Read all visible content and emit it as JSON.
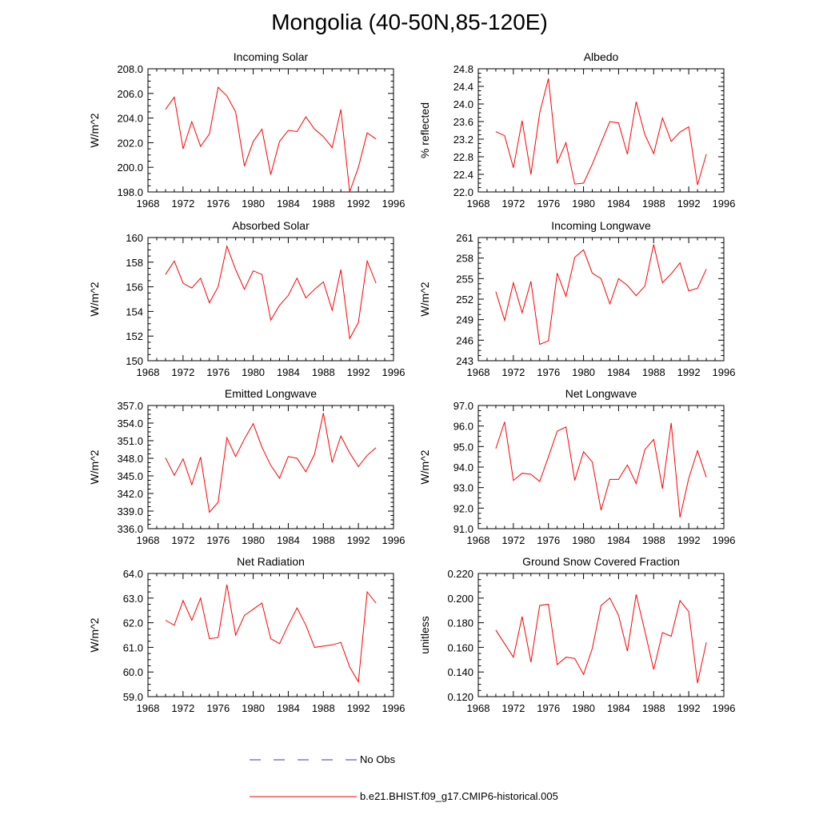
{
  "figure": {
    "title": "Mongolia (40-50N,85-120E)",
    "legend": [
      {
        "label": "No Obs",
        "color": "#3a3aa8",
        "style": "dashed"
      },
      {
        "label": "b.e21.BHIST.f09_g17.CMIP6-historical.005",
        "color": "#ff0000",
        "style": "solid"
      }
    ]
  },
  "chart_data": [
    {
      "type": "line",
      "title": "Incoming Solar",
      "xlabel": "",
      "ylabel": "W/m^2",
      "xlim": [
        1968,
        1996
      ],
      "xticks": [
        1968,
        1972,
        1976,
        1980,
        1984,
        1988,
        1992,
        1996
      ],
      "xticklabels": [
        "1968",
        "1972",
        "1976",
        "1980",
        "1984",
        "1988",
        "1992",
        "1996"
      ],
      "ylim": [
        198,
        208
      ],
      "yticks": [
        198,
        200,
        202,
        204,
        206,
        208
      ],
      "yticklabels": [
        "198.0",
        "200.0",
        "202.0",
        "204.0",
        "206.0",
        "208.0"
      ],
      "series": [
        {
          "name": "b.e21.BHIST.f09_g17.CMIP6-historical.005",
          "color": "#ff0000",
          "x": [
            1970,
            1971,
            1972,
            1973,
            1974,
            1975,
            1976,
            1977,
            1978,
            1979,
            1980,
            1981,
            1982,
            1983,
            1984,
            1985,
            1986,
            1987,
            1988,
            1989,
            1990,
            1991,
            1992,
            1993,
            1994
          ],
          "values": [
            204.7,
            205.7,
            201.5,
            203.7,
            201.7,
            202.7,
            206.5,
            205.8,
            204.5,
            200.1,
            202.1,
            203.1,
            199.4,
            202.1,
            203.0,
            202.9,
            204.1,
            203.1,
            202.5,
            201.6,
            204.7,
            198.0,
            200.0,
            202.8,
            202.3
          ]
        }
      ]
    },
    {
      "type": "line",
      "title": "Albedo",
      "xlabel": "",
      "ylabel": "% reflected",
      "xlim": [
        1968,
        1996
      ],
      "xticks": [
        1968,
        1972,
        1976,
        1980,
        1984,
        1988,
        1992,
        1996
      ],
      "xticklabels": [
        "1968",
        "1972",
        "1976",
        "1980",
        "1984",
        "1988",
        "1992",
        "1996"
      ],
      "ylim": [
        22.0,
        24.8
      ],
      "yticks": [
        22.0,
        22.4,
        22.8,
        23.2,
        23.6,
        24.0,
        24.4,
        24.8
      ],
      "yticklabels": [
        "22.0",
        "22.4",
        "22.8",
        "23.2",
        "23.6",
        "24.0",
        "24.4",
        "24.8"
      ],
      "series": [
        {
          "name": "b.e21.BHIST.f09_g17.CMIP6-historical.005",
          "color": "#ff0000",
          "x": [
            1970,
            1971,
            1972,
            1973,
            1974,
            1975,
            1976,
            1977,
            1978,
            1979,
            1980,
            1981,
            1982,
            1983,
            1984,
            1985,
            1986,
            1987,
            1988,
            1989,
            1990,
            1991,
            1992,
            1993,
            1994
          ],
          "values": [
            23.37,
            23.28,
            22.55,
            23.62,
            22.4,
            23.8,
            24.58,
            22.66,
            23.12,
            22.18,
            22.2,
            22.63,
            23.12,
            23.6,
            23.57,
            22.86,
            24.05,
            23.3,
            22.87,
            23.68,
            23.15,
            23.36,
            23.48,
            22.16,
            22.86
          ]
        }
      ]
    },
    {
      "type": "line",
      "title": "Absorbed Solar",
      "xlabel": "",
      "ylabel": "W/m^2",
      "xlim": [
        1968,
        1996
      ],
      "xticks": [
        1968,
        1972,
        1976,
        1980,
        1984,
        1988,
        1992,
        1996
      ],
      "xticklabels": [
        "1968",
        "1972",
        "1976",
        "1980",
        "1984",
        "1988",
        "1992",
        "1996"
      ],
      "ylim": [
        150,
        160
      ],
      "yticks": [
        150,
        152,
        154,
        156,
        158,
        160
      ],
      "yticklabels": [
        "150",
        "152",
        "154",
        "156",
        "158",
        "160"
      ],
      "series": [
        {
          "name": "b.e21.BHIST.f09_g17.CMIP6-historical.005",
          "color": "#ff0000",
          "x": [
            1970,
            1971,
            1972,
            1973,
            1974,
            1975,
            1976,
            1977,
            1978,
            1979,
            1980,
            1981,
            1982,
            1983,
            1984,
            1985,
            1986,
            1987,
            1988,
            1989,
            1990,
            1991,
            1992,
            1993,
            1994
          ],
          "values": [
            157.0,
            158.1,
            156.3,
            155.9,
            156.7,
            154.7,
            156.0,
            159.3,
            157.4,
            155.8,
            157.3,
            157.0,
            153.3,
            154.5,
            155.3,
            156.7,
            155.1,
            155.8,
            156.4,
            154.1,
            157.4,
            151.8,
            153.1,
            158.1,
            156.3
          ]
        }
      ]
    },
    {
      "type": "line",
      "title": "Incoming Longwave",
      "xlabel": "",
      "ylabel": "W/m^2",
      "xlim": [
        1968,
        1996
      ],
      "xticks": [
        1968,
        1972,
        1976,
        1980,
        1984,
        1988,
        1992,
        1996
      ],
      "xticklabels": [
        "1968",
        "1972",
        "1976",
        "1980",
        "1984",
        "1988",
        "1992",
        "1996"
      ],
      "ylim": [
        243,
        261
      ],
      "yticks": [
        243,
        246,
        249,
        252,
        255,
        258,
        261
      ],
      "yticklabels": [
        "243",
        "246",
        "249",
        "252",
        "255",
        "258",
        "261"
      ],
      "series": [
        {
          "name": "b.e21.BHIST.f09_g17.CMIP6-historical.005",
          "color": "#ff0000",
          "x": [
            1970,
            1971,
            1972,
            1973,
            1974,
            1975,
            1976,
            1977,
            1978,
            1979,
            1980,
            1981,
            1982,
            1983,
            1984,
            1985,
            1986,
            1987,
            1988,
            1989,
            1990,
            1991,
            1992,
            1993,
            1994
          ],
          "values": [
            253.1,
            248.9,
            254.4,
            250.0,
            254.6,
            245.4,
            245.9,
            255.8,
            252.4,
            258.1,
            259.2,
            255.8,
            255.0,
            251.3,
            255.0,
            254.0,
            252.5,
            253.9,
            260.0,
            254.4,
            255.7,
            257.3,
            253.2,
            253.6,
            256.4
          ]
        }
      ]
    },
    {
      "type": "line",
      "title": "Emitted Longwave",
      "xlabel": "",
      "ylabel": "W/m^2",
      "xlim": [
        1968,
        1996
      ],
      "xticks": [
        1968,
        1972,
        1976,
        1980,
        1984,
        1988,
        1992,
        1996
      ],
      "xticklabels": [
        "1968",
        "1972",
        "1976",
        "1980",
        "1984",
        "1988",
        "1992",
        "1996"
      ],
      "ylim": [
        336,
        357
      ],
      "yticks": [
        336,
        339,
        342,
        345,
        348,
        351,
        354,
        357
      ],
      "yticklabels": [
        "336.0",
        "339.0",
        "342.0",
        "345.0",
        "348.0",
        "351.0",
        "354.0",
        "357.0"
      ],
      "series": [
        {
          "name": "b.e21.BHIST.f09_g17.CMIP6-historical.005",
          "color": "#ff0000",
          "x": [
            1970,
            1971,
            1972,
            1973,
            1974,
            1975,
            1976,
            1977,
            1978,
            1979,
            1980,
            1981,
            1982,
            1983,
            1984,
            1985,
            1986,
            1987,
            1988,
            1989,
            1990,
            1991,
            1992,
            1993,
            1994
          ],
          "values": [
            348.1,
            345.1,
            347.9,
            343.5,
            348.2,
            338.8,
            340.5,
            351.5,
            348.3,
            351.3,
            353.9,
            349.9,
            346.8,
            344.6,
            348.3,
            348.0,
            345.7,
            348.7,
            355.7,
            347.3,
            351.8,
            348.9,
            346.6,
            348.5,
            349.8
          ]
        }
      ]
    },
    {
      "type": "line",
      "title": "Net Longwave",
      "xlabel": "",
      "ylabel": "W/m^2",
      "xlim": [
        1968,
        1996
      ],
      "xticks": [
        1968,
        1972,
        1976,
        1980,
        1984,
        1988,
        1992,
        1996
      ],
      "xticklabels": [
        "1968",
        "1972",
        "1976",
        "1980",
        "1984",
        "1988",
        "1992",
        "1996"
      ],
      "ylim": [
        91,
        97
      ],
      "yticks": [
        91,
        92,
        93,
        94,
        95,
        96,
        97
      ],
      "yticklabels": [
        "91.0",
        "92.0",
        "93.0",
        "94.0",
        "95.0",
        "96.0",
        "97.0"
      ],
      "series": [
        {
          "name": "b.e21.BHIST.f09_g17.CMIP6-historical.005",
          "color": "#ff0000",
          "x": [
            1970,
            1971,
            1972,
            1973,
            1974,
            1975,
            1976,
            1977,
            1978,
            1979,
            1980,
            1981,
            1982,
            1983,
            1984,
            1985,
            1986,
            1987,
            1988,
            1989,
            1990,
            1991,
            1992,
            1993,
            1994
          ],
          "values": [
            94.9,
            96.2,
            93.35,
            93.7,
            93.65,
            93.3,
            94.5,
            95.75,
            95.95,
            93.35,
            94.75,
            94.25,
            91.9,
            93.4,
            93.4,
            94.1,
            93.2,
            94.85,
            95.35,
            92.95,
            96.15,
            91.55,
            93.45,
            94.8,
            93.5
          ]
        }
      ]
    },
    {
      "type": "line",
      "title": "Net Radiation",
      "xlabel": "",
      "ylabel": "W/m^2",
      "xlim": [
        1968,
        1996
      ],
      "xticks": [
        1968,
        1972,
        1976,
        1980,
        1984,
        1988,
        1992,
        1996
      ],
      "xticklabels": [
        "1968",
        "1972",
        "1976",
        "1980",
        "1984",
        "1988",
        "1992",
        "1996"
      ],
      "ylim": [
        59,
        64
      ],
      "yticks": [
        59,
        60,
        61,
        62,
        63,
        64
      ],
      "yticklabels": [
        "59.0",
        "60.0",
        "61.0",
        "62.0",
        "63.0",
        "64.0"
      ],
      "series": [
        {
          "name": "b.e21.BHIST.f09_g17.CMIP6-historical.005",
          "color": "#ff0000",
          "x": [
            1970,
            1971,
            1972,
            1973,
            1974,
            1975,
            1976,
            1977,
            1978,
            1979,
            1980,
            1981,
            1982,
            1983,
            1984,
            1985,
            1986,
            1987,
            1988,
            1989,
            1990,
            1991,
            1992,
            1993,
            1994
          ],
          "values": [
            62.1,
            61.9,
            62.9,
            62.1,
            63.0,
            61.35,
            61.4,
            63.55,
            61.5,
            62.3,
            62.55,
            62.8,
            61.35,
            61.15,
            61.9,
            62.6,
            61.9,
            61.0,
            61.05,
            61.1,
            61.2,
            60.2,
            59.6,
            63.25,
            62.8
          ]
        }
      ]
    },
    {
      "type": "line",
      "title": "Ground Snow Covered Fraction",
      "xlabel": "",
      "ylabel": "unitless",
      "xlim": [
        1968,
        1996
      ],
      "xticks": [
        1968,
        1972,
        1976,
        1980,
        1984,
        1988,
        1992,
        1996
      ],
      "xticklabels": [
        "1968",
        "1972",
        "1976",
        "1980",
        "1984",
        "1988",
        "1992",
        "1996"
      ],
      "ylim": [
        0.12,
        0.22
      ],
      "yticks": [
        0.12,
        0.14,
        0.16,
        0.18,
        0.2,
        0.22
      ],
      "yticklabels": [
        "0.120",
        "0.140",
        "0.160",
        "0.180",
        "0.200",
        "0.220"
      ],
      "series": [
        {
          "name": "b.e21.BHIST.f09_g17.CMIP6-historical.005",
          "color": "#ff0000",
          "x": [
            1970,
            1971,
            1972,
            1973,
            1974,
            1975,
            1976,
            1977,
            1978,
            1979,
            1980,
            1981,
            1982,
            1983,
            1984,
            1985,
            1986,
            1987,
            1988,
            1989,
            1990,
            1991,
            1992,
            1993,
            1994
          ],
          "values": [
            0.174,
            0.163,
            0.152,
            0.185,
            0.148,
            0.194,
            0.195,
            0.146,
            0.152,
            0.151,
            0.138,
            0.159,
            0.194,
            0.2,
            0.186,
            0.157,
            0.203,
            0.173,
            0.142,
            0.172,
            0.169,
            0.198,
            0.189,
            0.131,
            0.164
          ]
        }
      ]
    }
  ]
}
